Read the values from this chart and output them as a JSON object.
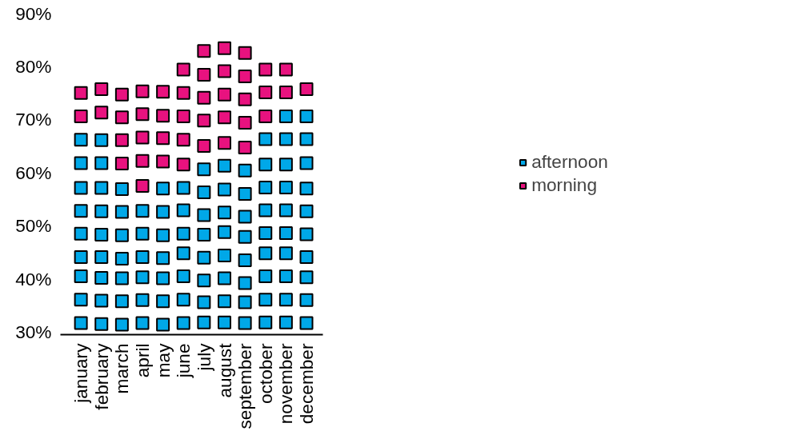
{
  "chart_data": {
    "type": "scatter",
    "categories": [
      "january",
      "february",
      "march",
      "april",
      "may",
      "june",
      "july",
      "august",
      "september",
      "october",
      "november",
      "december"
    ],
    "series": [
      {
        "name": "afternoon",
        "color": "#00a8e8",
        "x": [
          "january",
          "january",
          "january",
          "january",
          "january",
          "january",
          "january",
          "january",
          "january",
          "february",
          "february",
          "february",
          "february",
          "february",
          "february",
          "february",
          "february",
          "february",
          "march",
          "march",
          "march",
          "march",
          "march",
          "march",
          "march",
          "april",
          "april",
          "april",
          "april",
          "april",
          "april",
          "may",
          "may",
          "may",
          "may",
          "may",
          "may",
          "may",
          "june",
          "june",
          "june",
          "june",
          "june",
          "june",
          "june",
          "july",
          "july",
          "july",
          "july",
          "july",
          "july",
          "july",
          "july",
          "august",
          "august",
          "august",
          "august",
          "august",
          "august",
          "august",
          "august",
          "september",
          "september",
          "september",
          "september",
          "september",
          "september",
          "september",
          "september",
          "october",
          "october",
          "october",
          "october",
          "october",
          "october",
          "october",
          "october",
          "october",
          "november",
          "november",
          "november",
          "november",
          "november",
          "november",
          "november",
          "november",
          "november",
          "november",
          "december",
          "december",
          "december",
          "december",
          "december",
          "december",
          "december",
          "december",
          "december",
          "december"
        ],
        "values": [
          31.7,
          36.1,
          40.5,
          44.1,
          48.5,
          52.8,
          57.1,
          61.8,
          66.2,
          31.5,
          35.9,
          40.2,
          44.1,
          48.3,
          52.7,
          57.1,
          61.8,
          66.1,
          31.4,
          35.8,
          40.1,
          43.8,
          48.2,
          52.6,
          56.9,
          31.7,
          36.0,
          40.3,
          44.1,
          48.5,
          52.8,
          31.4,
          35.8,
          40.1,
          43.9,
          48.2,
          52.6,
          57.0,
          31.7,
          36.1,
          40.5,
          44.8,
          48.5,
          52.9,
          57.1,
          31.8,
          35.6,
          39.7,
          44.0,
          48.3,
          52.0,
          56.3,
          60.6,
          31.8,
          35.8,
          40.1,
          44.4,
          48.8,
          52.5,
          56.8,
          61.3,
          31.7,
          35.6,
          39.2,
          43.5,
          47.9,
          51.7,
          56.0,
          60.4,
          31.8,
          36.1,
          40.5,
          44.8,
          48.6,
          52.9,
          57.2,
          61.5,
          66.3,
          31.8,
          36.1,
          40.5,
          44.8,
          48.6,
          52.9,
          57.2,
          61.5,
          66.3,
          70.6,
          31.7,
          36.0,
          40.3,
          44.1,
          48.4,
          52.7,
          57.0,
          61.8,
          66.3,
          70.6
        ]
      },
      {
        "name": "morning",
        "color": "#e8127f",
        "x": [
          "january",
          "january",
          "february",
          "february",
          "march",
          "march",
          "march",
          "march",
          "april",
          "april",
          "april",
          "april",
          "april",
          "may",
          "may",
          "may",
          "may",
          "june",
          "june",
          "june",
          "june",
          "june",
          "july",
          "july",
          "july",
          "july",
          "july",
          "august",
          "august",
          "august",
          "august",
          "august",
          "september",
          "september",
          "september",
          "september",
          "september",
          "october",
          "october",
          "october",
          "november",
          "november",
          "december"
        ],
        "values": [
          70.6,
          75.0,
          71.3,
          75.7,
          61.7,
          66.1,
          70.4,
          74.7,
          57.5,
          62.2,
          66.6,
          71.0,
          75.3,
          62.1,
          66.5,
          70.7,
          75.2,
          61.5,
          66.2,
          70.6,
          75.0,
          79.4,
          65.0,
          69.8,
          74.1,
          78.4,
          82.9,
          65.6,
          70.4,
          74.7,
          79.1,
          83.4,
          64.7,
          69.4,
          73.8,
          78.1,
          82.5,
          70.6,
          75.1,
          79.4,
          75.1,
          79.4,
          75.7
        ]
      }
    ],
    "ylim": [
      29.5,
      90
    ],
    "yticks": [
      {
        "value": 30,
        "label": "30%"
      },
      {
        "value": 40,
        "label": "40%"
      },
      {
        "value": 50,
        "label": "50%"
      },
      {
        "value": 60,
        "label": "60%"
      },
      {
        "value": 70,
        "label": "70%"
      },
      {
        "value": 80,
        "label": "80%"
      },
      {
        "value": 90,
        "label": "90%"
      }
    ],
    "marker": "square",
    "legend": "right",
    "grid": false
  }
}
